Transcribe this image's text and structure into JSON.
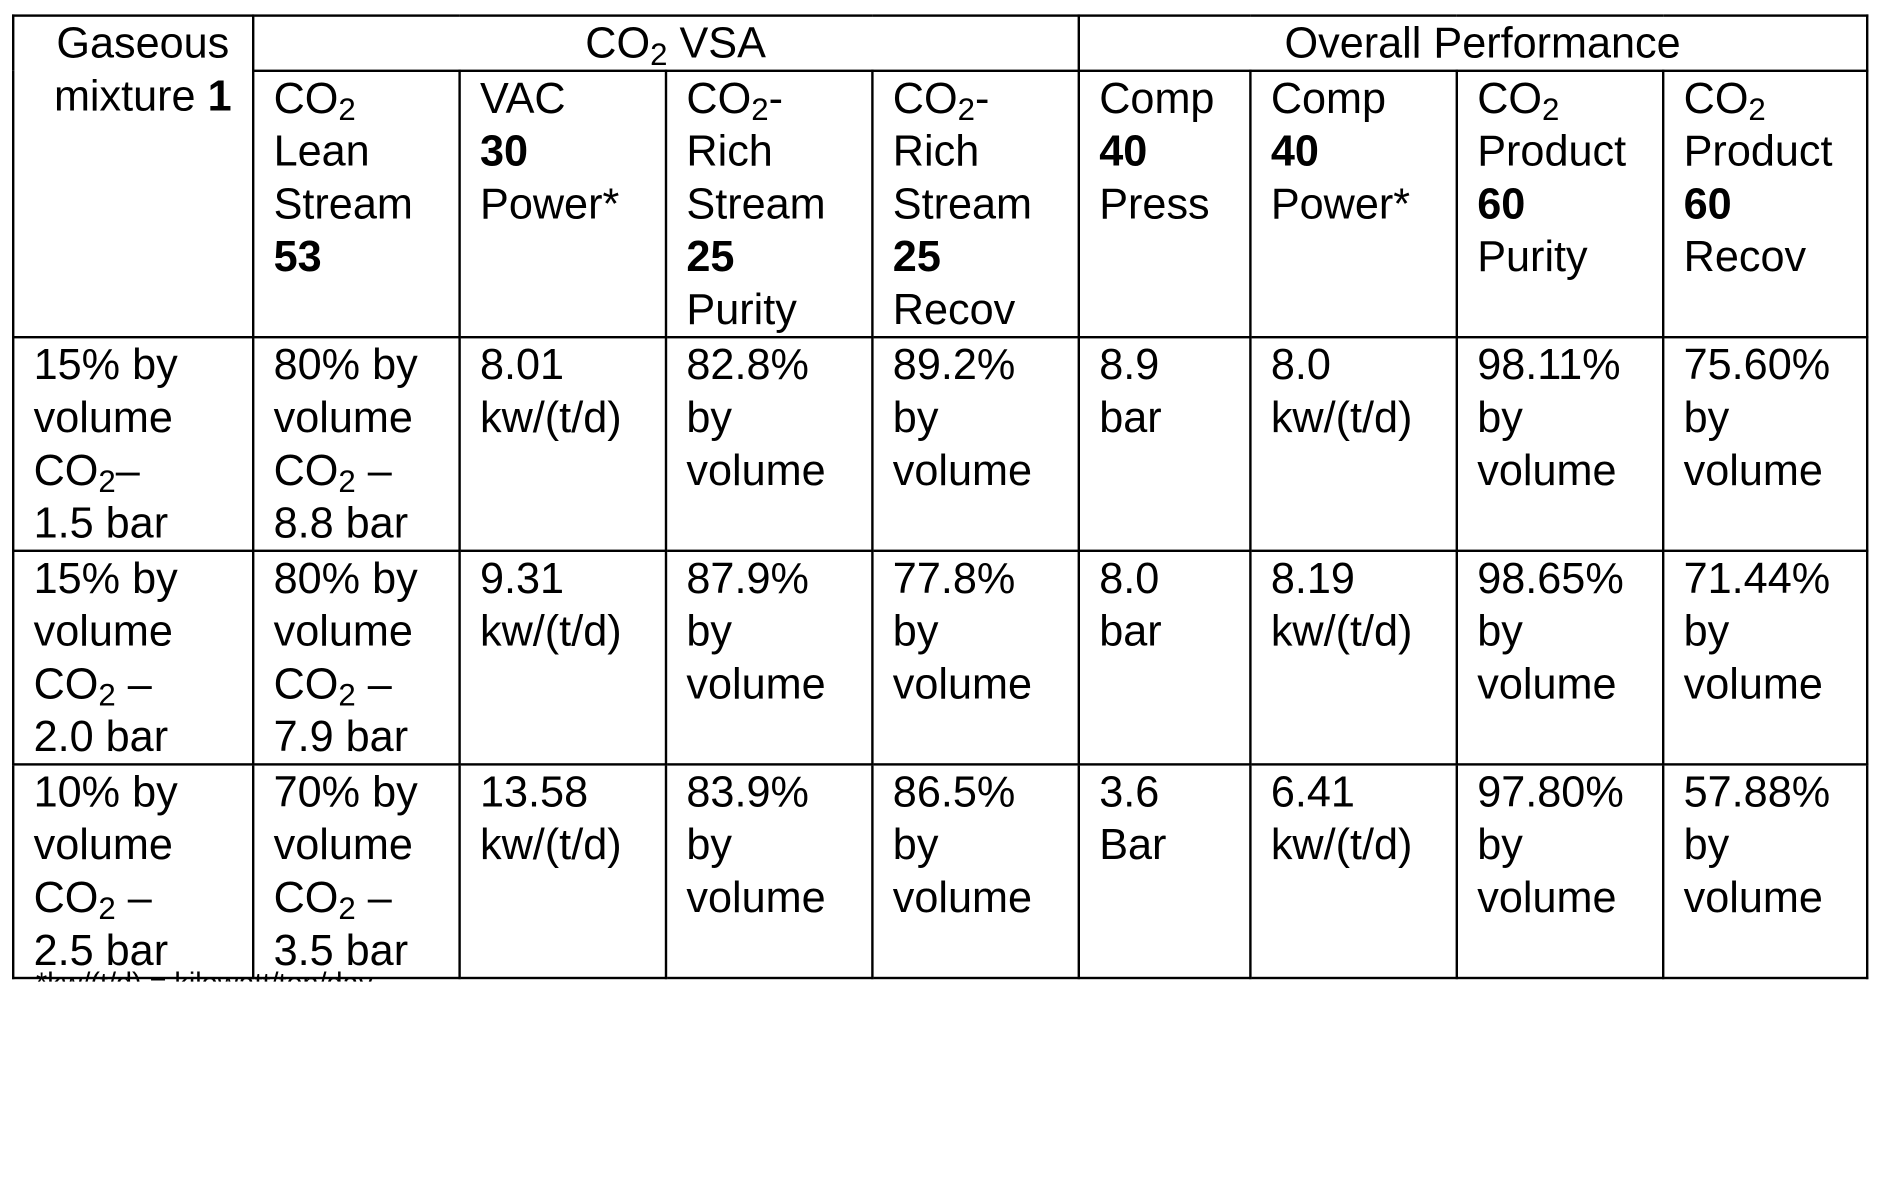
{
  "header": {
    "row_label_line1": "Gaseous",
    "row_label_line2": "mixture",
    "row_label_ref": "1",
    "group_vsa_prefix": "CO",
    "group_vsa_sub": "2",
    "group_vsa_suffix": " VSA",
    "group_overall": "Overall Performance",
    "columns": {
      "lean": {
        "co": "CO",
        "sub": "2",
        "l2": "Lean",
        "l3": "Stream",
        "ref": "53"
      },
      "vac": {
        "l1": "VAC",
        "ref": "30",
        "l3": "Power*"
      },
      "rich_purity": {
        "co": "CO",
        "sub": "2",
        "dash": "-",
        "l2": "Rich",
        "l3": "Stream",
        "ref": "25",
        "l5": "Purity"
      },
      "rich_recov": {
        "co": "CO",
        "sub": "2",
        "dash": "-",
        "l2": "Rich",
        "l3": "Stream",
        "ref": "25",
        "l5": "Recov"
      },
      "comp_press": {
        "l1": "Comp",
        "ref": "40",
        "l3": "Press"
      },
      "comp_power": {
        "l1": "Comp",
        "ref": "40",
        "l3": "Power*"
      },
      "prod_purity": {
        "co": "CO",
        "sub": "2",
        "l2": "Product",
        "ref": "60",
        "l4": "Purity"
      },
      "prod_recov": {
        "co": "CO",
        "sub": "2",
        "l2": "Product",
        "ref": "60",
        "l4": "Recov"
      }
    }
  },
  "rows": [
    {
      "mix": {
        "a": "15% by",
        "b": "volume",
        "co": "CO",
        "sub": "2",
        "dash": "–",
        "d": "1.5 bar"
      },
      "lean": {
        "a": "80% by",
        "b": "volume",
        "co": "CO",
        "sub": "2",
        "dash": " –",
        "d": "8.8 bar"
      },
      "vac": {
        "a": "8.01",
        "b": "kw/(t/d)"
      },
      "rich_purity": {
        "a": "82.8%",
        "b": "by",
        "c": "volume"
      },
      "rich_recov": {
        "a": "89.2%",
        "b": "by",
        "c": "volume"
      },
      "comp_press": {
        "a": "8.9",
        "b": "bar"
      },
      "comp_power": {
        "a": "8.0",
        "b": "kw/(t/d)"
      },
      "prod_purity": {
        "a": "98.11%",
        "b": "by",
        "c": "volume"
      },
      "prod_recov": {
        "a": "75.60%",
        "b": "by",
        "c": "volume"
      }
    },
    {
      "mix": {
        "a": "15% by",
        "b": "volume",
        "co": "CO",
        "sub": "2",
        "dash": " –",
        "d": "2.0 bar"
      },
      "lean": {
        "a": "80% by",
        "b": "volume",
        "co": "CO",
        "sub": "2",
        "dash": " –",
        "d": "7.9 bar"
      },
      "vac": {
        "a": "9.31",
        "b": "kw/(t/d)"
      },
      "rich_purity": {
        "a": "87.9%",
        "b": "by",
        "c": "volume"
      },
      "rich_recov": {
        "a": "77.8%",
        "b": "by",
        "c": "volume"
      },
      "comp_press": {
        "a": "8.0",
        "b": "bar"
      },
      "comp_power": {
        "a": "8.19",
        "b": "kw/(t/d)"
      },
      "prod_purity": {
        "a": "98.65%",
        "b": "by",
        "c": "volume"
      },
      "prod_recov": {
        "a": "71.44%",
        "b": "by",
        "c": "volume"
      }
    },
    {
      "mix": {
        "a": "10% by",
        "b": "volume",
        "co": "CO",
        "sub": "2",
        "dash": " –",
        "d": "2.5 bar"
      },
      "lean": {
        "a": "70% by",
        "b": "volume",
        "co": "CO",
        "sub": "2",
        "dash": " –",
        "d": "3.5 bar"
      },
      "vac": {
        "a": "13.58",
        "b": "kw/(t/d)"
      },
      "rich_purity": {
        "a": "83.9%",
        "b": "by",
        "c": "volume"
      },
      "rich_recov": {
        "a": "86.5%",
        "b": "by",
        "c": "volume"
      },
      "comp_press": {
        "a": "3.6",
        "b": "Bar"
      },
      "comp_power": {
        "a": "6.41",
        "b": "kw/(t/d)"
      },
      "prod_purity": {
        "a": "97.80%",
        "b": "by",
        "c": "volume"
      },
      "prod_recov": {
        "a": "57.88%",
        "b": "by",
        "c": "volume"
      }
    }
  ],
  "footnote": "*kw/(t/d) = kilowatt/ton/day"
}
